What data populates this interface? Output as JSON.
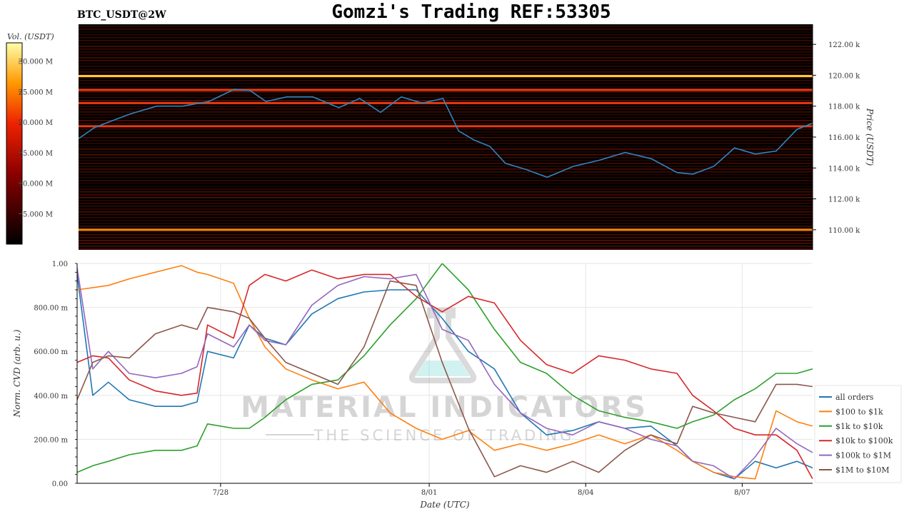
{
  "header": {
    "symbol": "BTC_USDT@2W",
    "title": "Gomzi's Trading REF:53305"
  },
  "watermark": {
    "brand": "MATERIAL INDICATORS",
    "tagline": "THE SCIENCE OF TRADING"
  },
  "colors": {
    "heatmap_bg": "#000000",
    "price_line": "#2e86c1",
    "all_orders": "#1f77b4",
    "r100_1k": "#ff7f0e",
    "r1k_10k": "#2ca02c",
    "r10k_100k": "#d62728",
    "r100k_1m": "#9467bd",
    "r1m_10m": "#8c564b"
  },
  "chart_data": [
    {
      "type": "heatmap",
      "title": "Gomzi's Trading REF:53305",
      "colorbar_label": "Vol. (USDT)",
      "colorbar_ticks": [
        "5.000 M",
        "10.000 M",
        "15.000 M",
        "20.000 M",
        "25.000 M",
        "30.000 M"
      ],
      "colorbar_range": [
        0,
        33000000
      ],
      "ylabel": "Price (USDT)",
      "y_ticks": [
        "110.00 k",
        "112.00 k",
        "114.00 k",
        "116.00 k",
        "118.00 k",
        "120.00 k",
        "122.00 k"
      ],
      "ylim": [
        108700,
        123300
      ],
      "bright_levels": [
        {
          "price": 119950,
          "intensity": 0.95
        },
        {
          "price": 110000,
          "intensity": 0.85
        },
        {
          "price": 119050,
          "intensity": 0.55
        },
        {
          "price": 118200,
          "intensity": 0.5
        },
        {
          "price": 116700,
          "intensity": 0.45
        }
      ],
      "price_series": {
        "name": "Price",
        "x_days": [
          0,
          0.3,
          0.6,
          1.0,
          1.5,
          2.0,
          2.5,
          3.0,
          3.3,
          3.6,
          4.0,
          4.5,
          5.0,
          5.4,
          5.8,
          6.2,
          6.6,
          7.0,
          7.3,
          7.6,
          7.9,
          8.2,
          8.6,
          9.0,
          9.5,
          10.0,
          10.5,
          11.0,
          11.5,
          11.8,
          12.2,
          12.6,
          13.0,
          13.4,
          13.8,
          14.1
        ],
        "values": [
          115900,
          116600,
          117000,
          117500,
          118000,
          118000,
          118300,
          119100,
          119000,
          118300,
          118600,
          118600,
          117900,
          118500,
          117600,
          118600,
          118200,
          118500,
          116400,
          115800,
          115400,
          114300,
          113900,
          113400,
          114100,
          114500,
          115000,
          114600,
          113700,
          113600,
          114100,
          115300,
          114900,
          115100,
          116500,
          116900
        ]
      }
    },
    {
      "type": "line",
      "xlabel": "Date (UTC)",
      "ylabel": "Norm. CVD (arb. u.)",
      "x_ticks": [
        {
          "label": "7/28",
          "day": 2.75
        },
        {
          "label": "8/01",
          "day": 6.75
        },
        {
          "label": "8/04",
          "day": 9.75
        },
        {
          "label": "8/07",
          "day": 12.75
        }
      ],
      "y_ticks": [
        "0.00",
        "200.00 m",
        "400.00 m",
        "600.00 m",
        "800.00 m",
        "1.00"
      ],
      "ylim": [
        0,
        1
      ],
      "xlim": [
        0,
        14.1
      ],
      "legend_position": "lower-right",
      "x_days": [
        0,
        0.3,
        0.6,
        1.0,
        1.5,
        2.0,
        2.3,
        2.5,
        3.0,
        3.3,
        3.6,
        4.0,
        4.5,
        5.0,
        5.5,
        6.0,
        6.5,
        7.0,
        7.5,
        8.0,
        8.5,
        9.0,
        9.5,
        10.0,
        10.5,
        11.0,
        11.5,
        11.8,
        12.2,
        12.6,
        13.0,
        13.4,
        13.8,
        14.1
      ],
      "series": [
        {
          "name": "all orders",
          "color_key": "all_orders",
          "values": [
            0.95,
            0.4,
            0.46,
            0.38,
            0.35,
            0.35,
            0.37,
            0.6,
            0.57,
            0.72,
            0.66,
            0.63,
            0.77,
            0.84,
            0.87,
            0.88,
            0.88,
            0.75,
            0.6,
            0.52,
            0.32,
            0.22,
            0.24,
            0.28,
            0.25,
            0.26,
            0.17,
            0.1,
            0.05,
            0.02,
            0.1,
            0.07,
            0.1,
            0.07
          ]
        },
        {
          "name": "$100 to $1k",
          "color_key": "r100_1k",
          "values": [
            0.88,
            0.89,
            0.9,
            0.93,
            0.96,
            0.99,
            0.96,
            0.95,
            0.91,
            0.75,
            0.62,
            0.52,
            0.47,
            0.43,
            0.46,
            0.32,
            0.25,
            0.2,
            0.24,
            0.15,
            0.18,
            0.15,
            0.18,
            0.22,
            0.18,
            0.22,
            0.15,
            0.1,
            0.05,
            0.03,
            0.02,
            0.33,
            0.28,
            0.26
          ]
        },
        {
          "name": "$1k to $10k",
          "color_key": "r1k_10k",
          "values": [
            0.05,
            0.08,
            0.1,
            0.13,
            0.15,
            0.15,
            0.17,
            0.27,
            0.25,
            0.25,
            0.3,
            0.38,
            0.45,
            0.47,
            0.58,
            0.72,
            0.84,
            1.0,
            0.88,
            0.7,
            0.55,
            0.5,
            0.4,
            0.33,
            0.3,
            0.28,
            0.25,
            0.28,
            0.31,
            0.38,
            0.43,
            0.5,
            0.5,
            0.52
          ]
        },
        {
          "name": "$10k to $100k",
          "color_key": "r10k_100k",
          "values": [
            0.55,
            0.58,
            0.57,
            0.47,
            0.42,
            0.4,
            0.41,
            0.72,
            0.66,
            0.9,
            0.95,
            0.92,
            0.97,
            0.93,
            0.95,
            0.95,
            0.85,
            0.78,
            0.85,
            0.82,
            0.65,
            0.54,
            0.5,
            0.58,
            0.56,
            0.52,
            0.5,
            0.4,
            0.33,
            0.25,
            0.22,
            0.22,
            0.15,
            0.02
          ]
        },
        {
          "name": "$100k to $1M",
          "color_key": "r100k_1m",
          "values": [
            0.98,
            0.52,
            0.6,
            0.5,
            0.48,
            0.5,
            0.53,
            0.68,
            0.62,
            0.72,
            0.65,
            0.63,
            0.81,
            0.9,
            0.94,
            0.93,
            0.95,
            0.7,
            0.65,
            0.45,
            0.32,
            0.25,
            0.22,
            0.28,
            0.25,
            0.2,
            0.17,
            0.1,
            0.08,
            0.02,
            0.12,
            0.25,
            0.18,
            0.14
          ]
        },
        {
          "name": "$1M to $10M",
          "color_key": "r1m_10m",
          "values": [
            0.38,
            0.55,
            0.58,
            0.57,
            0.68,
            0.72,
            0.7,
            0.8,
            0.78,
            0.75,
            0.66,
            0.55,
            0.5,
            0.45,
            0.62,
            0.92,
            0.9,
            0.55,
            0.25,
            0.03,
            0.08,
            0.05,
            0.1,
            0.05,
            0.15,
            0.22,
            0.18,
            0.35,
            0.32,
            0.3,
            0.28,
            0.45,
            0.45,
            0.44
          ]
        }
      ]
    }
  ]
}
